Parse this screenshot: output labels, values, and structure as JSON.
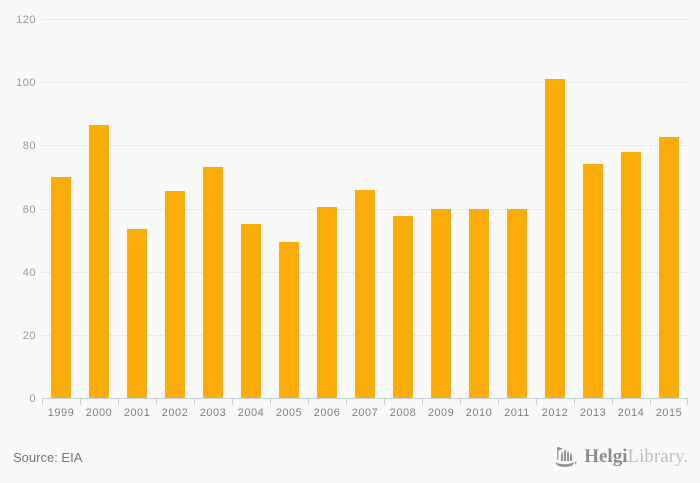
{
  "chart_data": {
    "type": "bar",
    "categories": [
      "1999",
      "2000",
      "2001",
      "2002",
      "2003",
      "2004",
      "2005",
      "2006",
      "2007",
      "2008",
      "2009",
      "2010",
      "2011",
      "2012",
      "2013",
      "2014",
      "2015"
    ],
    "values": [
      70,
      86.5,
      53.5,
      65.5,
      73,
      55,
      49.5,
      60.5,
      66,
      57.5,
      59.8,
      59.7,
      59.7,
      101,
      74,
      78,
      82.5
    ],
    "title": "",
    "xlabel": "",
    "ylabel": "",
    "ylim": [
      0,
      120
    ],
    "yticks": [
      0,
      20,
      40,
      60,
      80,
      100,
      120
    ],
    "grid": true,
    "legend": false,
    "bar_color": "#FAAD08"
  },
  "footer": {
    "source_label": "Source: EIA"
  },
  "logo": {
    "icon": "helgi-building-icon",
    "brand_primary": "Helgi",
    "brand_secondary": "Library.",
    "icon_color": "#909090"
  }
}
